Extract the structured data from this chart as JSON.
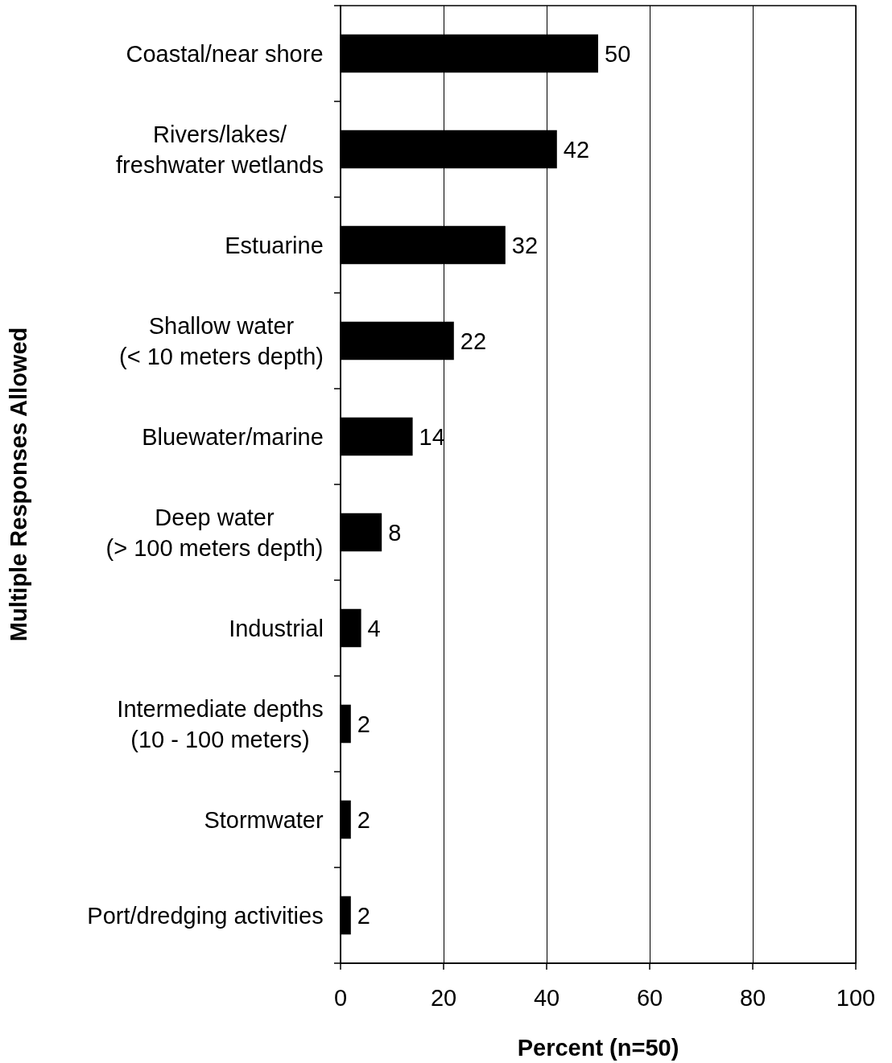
{
  "chart_data": {
    "type": "bar",
    "orientation": "horizontal",
    "categories": [
      "Coastal/near shore",
      "Rivers/lakes/\nfreshwater wetlands",
      "Estuarine",
      "Shallow water\n(< 10 meters depth)",
      "Bluewater/marine",
      "Deep water\n(> 100 meters depth)",
      "Industrial",
      "Intermediate depths\n(10 - 100 meters)",
      "Stormwater",
      "Port/dredging activities"
    ],
    "values": [
      50,
      42,
      32,
      22,
      14,
      8,
      4,
      2,
      2,
      2
    ],
    "color": "#000000",
    "xlabel": "Percent (n=50)",
    "ylabel": "Multiple Responses Allowed",
    "xlim": [
      0,
      100
    ],
    "xticks": [
      0,
      20,
      40,
      60,
      80,
      100
    ],
    "grid": "x",
    "data_labels": true
  }
}
